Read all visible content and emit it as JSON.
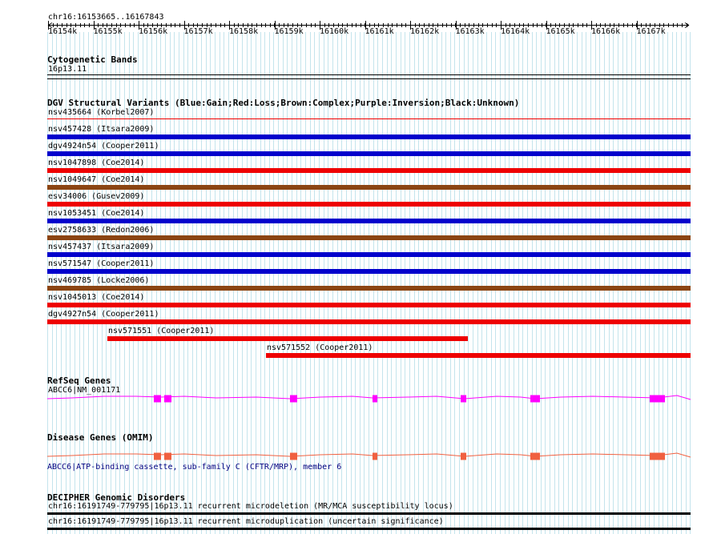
{
  "ruler": {
    "coord_label": "chr16:16153665..16167843",
    "ticks": [
      "16154k",
      "16155k",
      "16156k",
      "16157k",
      "16158k",
      "16159k",
      "16160k",
      "16161k",
      "16162k",
      "16163k",
      "16164k",
      "16165k",
      "16166k",
      "16167k"
    ]
  },
  "cytobands": {
    "title": "Cytogenetic Bands",
    "band": "16p13.11"
  },
  "dgv": {
    "title": "DGV Structural Variants (Blue:Gain;Red:Loss;Brown:Complex;Purple:Inversion;Black:Unknown)",
    "colors": {
      "gain": "#0000cc",
      "loss": "#ee0000",
      "complex": "#8b4513"
    },
    "variants": [
      {
        "label": "nsv435664 (Korbel2007)",
        "type": "loss",
        "thin": true
      },
      {
        "label": "nsv457428 (Itsara2009)",
        "type": "gain"
      },
      {
        "label": "dgv4924n54 (Cooper2011)",
        "type": "gain"
      },
      {
        "label": "nsv1047898 (Coe2014)",
        "type": "loss"
      },
      {
        "label": "nsv1049647 (Coe2014)",
        "type": "complex"
      },
      {
        "label": "esv34006 (Gusev2009)",
        "type": "loss"
      },
      {
        "label": "nsv1053451 (Coe2014)",
        "type": "gain"
      },
      {
        "label": "esv2758633 (Redon2006)",
        "type": "complex"
      },
      {
        "label": "nsv457437 (Itsara2009)",
        "type": "gain"
      },
      {
        "label": "nsv571547 (Cooper2011)",
        "type": "gain"
      },
      {
        "label": "nsv469785 (Locke2006)",
        "type": "complex"
      },
      {
        "label": "nsv1045013 (Coe2014)",
        "type": "loss"
      },
      {
        "label": "dgv4927n54 (Cooper2011)",
        "type": "loss"
      },
      {
        "label": "nsv571551 (Cooper2011)",
        "type": "loss"
      },
      {
        "label": "nsv571552 (Cooper2011)",
        "type": "loss"
      }
    ]
  },
  "refseq": {
    "title": "RefSeq Genes",
    "gene_label": "ABCC6|NM_001171",
    "color": "#ff00ff"
  },
  "omim": {
    "title": "Disease Genes (OMIM)",
    "gene_label": "ABCC6|ATP-binding cassette, sub-family C (CFTR/MRP), member 6",
    "color": "#f06040"
  },
  "decipher": {
    "title": "DECIPHER Genomic Disorders",
    "items": [
      "chr16:16191749-779795|16p13.11 recurrent microdeletion (MR/MCA susceptibility locus)",
      "chr16:16191749-779795|16p13.11 recurrent microduplication (uncertain significance)"
    ]
  }
}
